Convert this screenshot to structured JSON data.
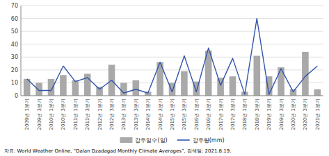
{
  "chart_data": {
    "type": "bar",
    "categories": [
      "2009년 1분기",
      "2009년 3분기",
      "2010년 1분기",
      "2010년 3분기",
      "2011년 1분기",
      "2011년 3분기",
      "2012년 1분기",
      "2012년 3분기",
      "2013년 1분기",
      "2013년 3분기",
      "2014년 1분기",
      "2014년 3분기",
      "2015년 1분기",
      "2015년 3분기",
      "2016년 1분기",
      "2016년 3분기",
      "2017년 1분기",
      "2017년 3분기",
      "2018년 1분기",
      "2018년 3분기",
      "2019년 1분기",
      "2019년 3분기",
      "2020년 1분기",
      "2020년 3분기",
      "2021년 1분기"
    ],
    "series": [
      {
        "name": "강우일수(일)",
        "type": "bar",
        "color": "#a9a9a9",
        "values": [
          13,
          10,
          13,
          16,
          12,
          17,
          7,
          24,
          10,
          12,
          3,
          26,
          10,
          19,
          11,
          35,
          14,
          15,
          3,
          31,
          15,
          22,
          5,
          34,
          5
        ]
      },
      {
        "name": "강우량(mm)",
        "type": "line",
        "color": "#3355aa",
        "values": [
          13,
          4,
          4,
          23,
          11,
          14,
          5,
          12,
          2,
          5,
          2,
          26,
          3,
          31,
          3,
          37,
          8,
          29,
          1,
          60,
          1,
          21,
          3,
          15,
          23
        ]
      }
    ],
    "ylim": [
      0,
      70
    ],
    "yticks": [
      0,
      10,
      20,
      30,
      40,
      50,
      60,
      70
    ],
    "grid": true,
    "legend": "bottom",
    "annotations": [
      "자료: World Weather Online, “Dalan Dzadagad Monthly Climate Averages”, 검색일: 2021.8.19."
    ]
  }
}
